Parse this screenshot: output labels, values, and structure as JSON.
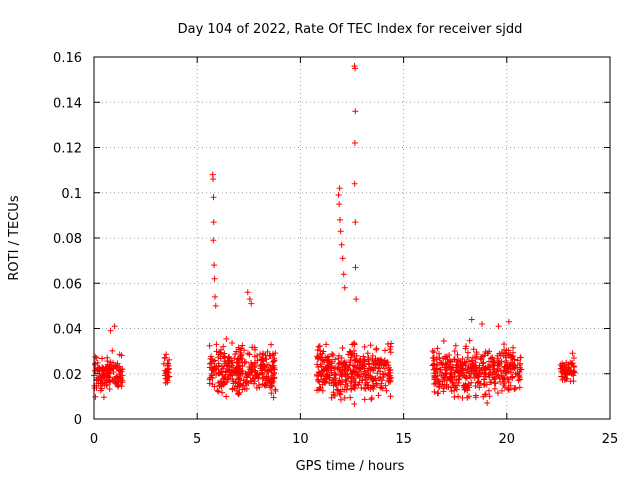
{
  "chart_data": {
    "type": "scatter",
    "title": "Day 104 of 2022, Rate Of TEC Index for receiver sjdd",
    "xlabel": "GPS time / hours",
    "ylabel": "ROTI / TECUs",
    "xlim": [
      0,
      25
    ],
    "ylim": [
      0,
      0.16
    ],
    "xticks": [
      0,
      5,
      10,
      15,
      20,
      25
    ],
    "xtick_labels": [
      "0",
      "5",
      "10",
      "15",
      "20",
      "25"
    ],
    "yticks": [
      0,
      0.02,
      0.04,
      0.06,
      0.08,
      0.1,
      0.12,
      0.14,
      0.16
    ],
    "ytick_labels": [
      "0",
      "0.02",
      "0.04",
      "0.06",
      "0.08",
      "0.1",
      "0.12",
      "0.14",
      "0.16"
    ],
    "grid": true,
    "marker": "+",
    "series": [
      {
        "name": "ROTI",
        "color": "#ff0000",
        "clusters": [
          {
            "x_start": 0.0,
            "x_end": 1.4,
            "y_min": 0.008,
            "y_max": 0.035,
            "y_center": 0.02,
            "density": 140
          },
          {
            "x_start": 3.35,
            "x_end": 3.65,
            "y_min": 0.009,
            "y_max": 0.033,
            "y_center": 0.02,
            "density": 30
          },
          {
            "x_start": 5.6,
            "x_end": 8.8,
            "y_min": 0.007,
            "y_max": 0.045,
            "y_center": 0.022,
            "density": 330
          },
          {
            "x_start": 10.8,
            "x_end": 14.4,
            "y_min": 0.005,
            "y_max": 0.047,
            "y_center": 0.021,
            "density": 380
          },
          {
            "x_start": 16.4,
            "x_end": 20.7,
            "y_min": 0.004,
            "y_max": 0.043,
            "y_center": 0.021,
            "density": 420
          },
          {
            "x_start": 22.6,
            "x_end": 23.3,
            "y_min": 0.011,
            "y_max": 0.035,
            "y_center": 0.022,
            "density": 60
          }
        ],
        "outliers": [
          {
            "x": 5.75,
            "y": 0.108
          },
          {
            "x": 5.77,
            "y": 0.106
          },
          {
            "x": 5.79,
            "y": 0.098
          },
          {
            "x": 5.8,
            "y": 0.087
          },
          {
            "x": 5.78,
            "y": 0.079
          },
          {
            "x": 5.82,
            "y": 0.068
          },
          {
            "x": 5.84,
            "y": 0.062
          },
          {
            "x": 5.86,
            "y": 0.054
          },
          {
            "x": 5.9,
            "y": 0.05
          },
          {
            "x": 7.45,
            "y": 0.056
          },
          {
            "x": 7.55,
            "y": 0.053
          },
          {
            "x": 7.62,
            "y": 0.051
          },
          {
            "x": 11.9,
            "y": 0.102
          },
          {
            "x": 11.85,
            "y": 0.099
          },
          {
            "x": 11.88,
            "y": 0.095
          },
          {
            "x": 11.92,
            "y": 0.088
          },
          {
            "x": 11.95,
            "y": 0.083
          },
          {
            "x": 12.0,
            "y": 0.077
          },
          {
            "x": 12.05,
            "y": 0.071
          },
          {
            "x": 12.1,
            "y": 0.064
          },
          {
            "x": 12.15,
            "y": 0.058
          },
          {
            "x": 12.62,
            "y": 0.156
          },
          {
            "x": 12.65,
            "y": 0.155
          },
          {
            "x": 12.66,
            "y": 0.136
          },
          {
            "x": 12.64,
            "y": 0.122
          },
          {
            "x": 12.63,
            "y": 0.104
          },
          {
            "x": 12.66,
            "y": 0.087
          },
          {
            "x": 12.67,
            "y": 0.067
          },
          {
            "x": 12.7,
            "y": 0.053
          },
          {
            "x": 18.3,
            "y": 0.044
          },
          {
            "x": 18.8,
            "y": 0.042
          },
          {
            "x": 19.6,
            "y": 0.041
          },
          {
            "x": 20.1,
            "y": 0.043
          },
          {
            "x": 1.0,
            "y": 0.041
          },
          {
            "x": 0.8,
            "y": 0.039
          }
        ]
      }
    ]
  }
}
